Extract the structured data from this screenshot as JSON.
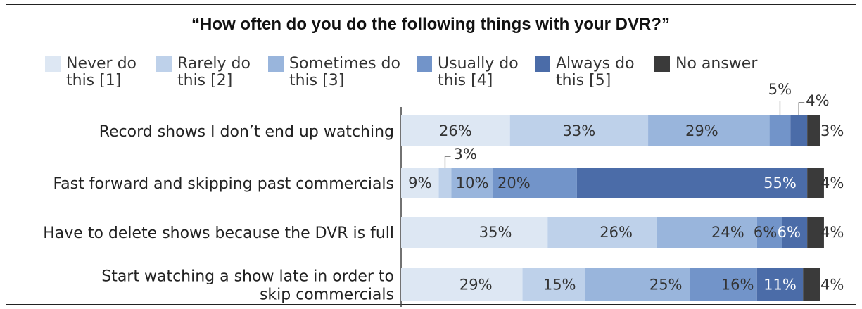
{
  "chart_data": {
    "type": "bar",
    "orientation": "horizontal",
    "stacked": true,
    "title": "“How often do you do the following things with your DVR?”",
    "categories": [
      "Record shows I don’t end up watching",
      "Fast forward and skipping past commercials",
      "Have to delete shows because the DVR is full",
      "Start watching a show late in order to|skip commercials"
    ],
    "series": [
      {
        "name": "Never do|this [1]",
        "color": "#dde7f3",
        "values": [
          26,
          9,
          35,
          29
        ]
      },
      {
        "name": "Rarely do|this [2]",
        "color": "#bed1ea",
        "values": [
          33,
          3,
          26,
          15
        ]
      },
      {
        "name": "Sometimes do|this [3]",
        "color": "#99b5dc",
        "values": [
          29,
          10,
          24,
          25
        ]
      },
      {
        "name": "Usually do|this [4]",
        "color": "#7294c9",
        "values": [
          5,
          20,
          6,
          16
        ]
      },
      {
        "name": "Always do|this [5]",
        "color": "#4b6ca8",
        "values": [
          4,
          55,
          6,
          11
        ]
      },
      {
        "name": "No answer",
        "color": "#3a3a3a",
        "values": [
          3,
          4,
          4,
          4
        ]
      }
    ],
    "labels": [
      [
        "26%",
        "33%",
        "29%",
        "5%",
        "4%",
        "3%"
      ],
      [
        "9%",
        "3%",
        "10%",
        "20%",
        "55%",
        "4%"
      ],
      [
        "35%",
        "26%",
        "24%",
        "6%",
        "6%",
        "4%"
      ],
      [
        "29%",
        "15%",
        "25%",
        "16%",
        "11%",
        "4%"
      ]
    ],
    "legend_position": "top",
    "xlim": [
      0,
      100
    ],
    "grid": false
  }
}
